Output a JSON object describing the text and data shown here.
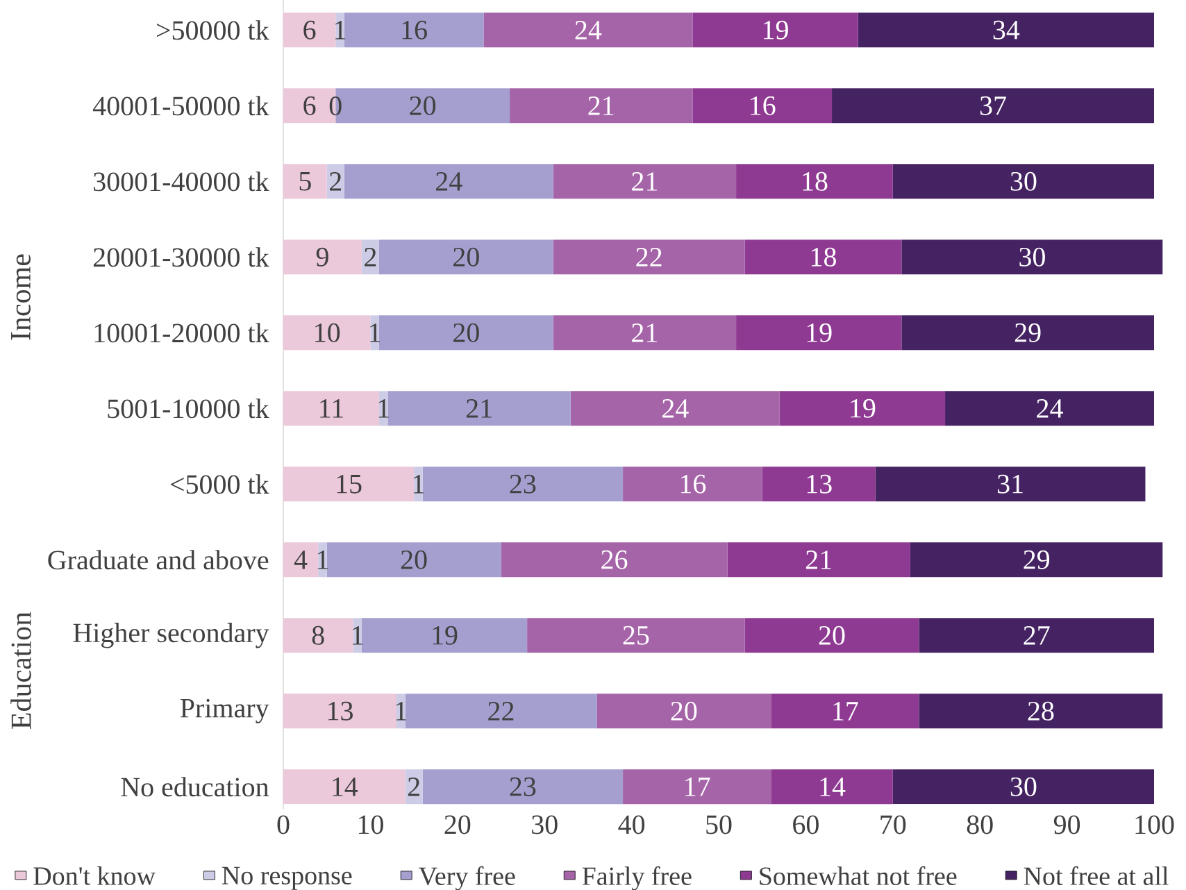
{
  "chart_data": {
    "type": "bar",
    "orientation": "horizontal",
    "stacked": true,
    "categories": [
      ">50000 tk",
      "40001-50000 tk",
      "30001-40000 tk",
      "20001-30000 tk",
      "10001-20000 tk",
      "5001-10000 tk",
      "<5000 tk",
      "Graduate and above",
      "Higher secondary",
      "Primary",
      "No education"
    ],
    "series": [
      {
        "name": "Don't know",
        "color": "#ebc8da",
        "values": [
          6,
          6,
          5,
          9,
          10,
          11,
          15,
          4,
          8,
          13,
          14
        ],
        "value_labels": [
          "6",
          "6",
          "5",
          "9",
          "10",
          "11",
          "15",
          "4",
          "8",
          "13",
          "14"
        ]
      },
      {
        "name": "No response",
        "color": "#cdcce6",
        "values": [
          1,
          0,
          2,
          2,
          1,
          1,
          1,
          1,
          1,
          1,
          2
        ],
        "value_labels": [
          "1",
          null,
          "2",
          "2",
          "1",
          "1",
          "1",
          "1",
          "1",
          "1",
          "2"
        ]
      },
      {
        "name": "Very free",
        "color": "#a59fd0",
        "values": [
          16,
          20,
          24,
          20,
          20,
          21,
          23,
          20,
          19,
          22,
          23
        ],
        "value_labels": [
          "16",
          "20",
          "24",
          "20",
          "20",
          "21",
          "23",
          "20",
          "19",
          "22",
          "23"
        ]
      },
      {
        "name": "Fairly free",
        "color": "#a563a8",
        "values": [
          24,
          21,
          21,
          22,
          21,
          24,
          16,
          26,
          25,
          20,
          17
        ],
        "value_labels": [
          "24",
          "21",
          "21",
          "22",
          "21",
          "24",
          "16",
          "26",
          "25",
          "20",
          "17"
        ]
      },
      {
        "name": "Somewhat not free",
        "color": "#8e3a92",
        "values": [
          19,
          16,
          18,
          18,
          19,
          19,
          13,
          21,
          20,
          17,
          14
        ],
        "value_labels": [
          "19",
          "16",
          "18",
          "18",
          "19",
          "19",
          "13",
          "21",
          "20",
          "17",
          "14"
        ]
      },
      {
        "name": "Not free at all",
        "color": "#452363",
        "values": [
          34,
          37,
          30,
          30,
          29,
          24,
          31,
          29,
          27,
          28,
          30
        ],
        "value_labels": [
          "34",
          "37",
          "30",
          "30",
          "29",
          "24",
          "31",
          "29",
          "27",
          "28",
          "30"
        ]
      }
    ],
    "xlim": [
      0,
      101
    ],
    "xticks": [
      0,
      10,
      20,
      30,
      40,
      50,
      60,
      70,
      80,
      90,
      100
    ],
    "legend": "bottom",
    "annotations": [
      "Income",
      "Education",
      "0"
    ]
  }
}
